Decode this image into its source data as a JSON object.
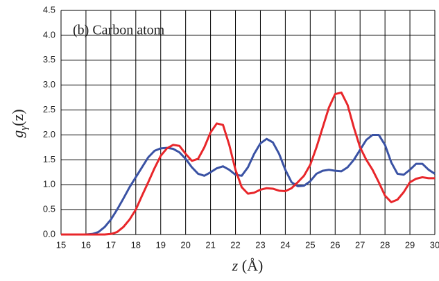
{
  "chart_data": {
    "type": "line",
    "annotation": "(b) Carbon atom",
    "ylabel": {
      "base": "g",
      "sub": "γ",
      "arg": "(z)"
    },
    "xlabel": {
      "var": "z",
      "unit": "(Å)"
    },
    "x": [
      15,
      15.25,
      15.5,
      15.75,
      16,
      16.25,
      16.5,
      16.75,
      17,
      17.25,
      17.5,
      17.75,
      18,
      18.25,
      18.5,
      18.75,
      19,
      19.25,
      19.5,
      19.75,
      20,
      20.25,
      20.5,
      20.75,
      21,
      21.25,
      21.5,
      21.75,
      22,
      22.25,
      22.5,
      22.75,
      23,
      23.25,
      23.5,
      23.75,
      24,
      24.25,
      24.5,
      24.75,
      25,
      25.25,
      25.5,
      25.75,
      26,
      26.25,
      26.5,
      26.75,
      27,
      27.25,
      27.5,
      27.75,
      28,
      28.25,
      28.5,
      28.75,
      29,
      29.25,
      29.5,
      29.75,
      30
    ],
    "series": [
      {
        "color": "#3a52a4",
        "values": [
          0,
          0,
          0,
          0,
          0,
          0.01,
          0.05,
          0.15,
          0.3,
          0.5,
          0.72,
          0.95,
          1.15,
          1.35,
          1.55,
          1.68,
          1.73,
          1.74,
          1.72,
          1.65,
          1.52,
          1.35,
          1.22,
          1.18,
          1.25,
          1.33,
          1.37,
          1.3,
          1.2,
          1.18,
          1.35,
          1.62,
          1.83,
          1.92,
          1.85,
          1.62,
          1.3,
          1.05,
          0.97,
          0.98,
          1.07,
          1.22,
          1.28,
          1.3,
          1.28,
          1.27,
          1.35,
          1.5,
          1.7,
          1.9,
          2.0,
          2.0,
          1.8,
          1.45,
          1.22,
          1.2,
          1.3,
          1.42,
          1.42,
          1.3,
          1.22
        ]
      },
      {
        "color": "#e8262a",
        "values": [
          0,
          0,
          0,
          0,
          0,
          0,
          0,
          0,
          0.01,
          0.05,
          0.15,
          0.3,
          0.5,
          0.78,
          1.05,
          1.33,
          1.58,
          1.73,
          1.8,
          1.78,
          1.62,
          1.48,
          1.52,
          1.75,
          2.05,
          2.23,
          2.2,
          1.8,
          1.3,
          0.95,
          0.82,
          0.84,
          0.9,
          0.93,
          0.92,
          0.88,
          0.87,
          0.93,
          1.05,
          1.18,
          1.4,
          1.75,
          2.15,
          2.55,
          2.82,
          2.85,
          2.6,
          2.15,
          1.75,
          1.5,
          1.3,
          1.05,
          0.78,
          0.65,
          0.7,
          0.85,
          1.05,
          1.12,
          1.15,
          1.13,
          1.13
        ]
      }
    ],
    "xlim": [
      15,
      30
    ],
    "xticks": [
      15,
      16,
      17,
      18,
      19,
      20,
      21,
      22,
      23,
      24,
      25,
      26,
      27,
      28,
      29,
      30
    ],
    "ylim": [
      0,
      4.5
    ],
    "yticks": [
      {
        "value": 0,
        "label": "0.0"
      },
      0.5,
      {
        "value": 1,
        "label": "1.0"
      },
      1.5,
      {
        "value": 2,
        "label": "2.0"
      },
      2.5,
      {
        "value": 3,
        "label": "3.0"
      },
      3.5,
      {
        "value": 4,
        "label": "4.0"
      },
      4.5
    ],
    "grid": true
  }
}
